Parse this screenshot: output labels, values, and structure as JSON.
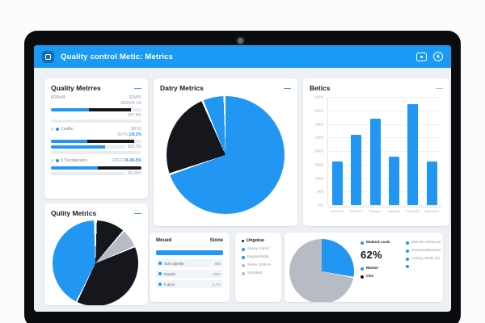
{
  "palette": {
    "blue": "#2196f3",
    "header_blue": "#1b9af5",
    "black": "#15171c",
    "gray": "#b7bcc4",
    "light": "#e8ecf2"
  },
  "header": {
    "title": "Quality control Metic: Metrics",
    "badge_glyph": "6"
  },
  "cards": {
    "quality_metres": {
      "title": "Quality Metrres",
      "collapse": "—",
      "blocks": [
        {
          "label": "FDOc4L",
          "value_top": "$2M05",
          "value_sub": "SE5426 1/6",
          "value_right": "297.8%",
          "bar": [
            [
              "blue",
              42
            ],
            [
              "black",
              46
            ],
            [
              "light",
              12
            ]
          ]
        },
        {
          "label": "Csafbo",
          "value_top": "$8.55",
          "value_pre": "907% ",
          "value_accent": "1/8.2%",
          "value_right": "$58.3%",
          "bar": [
            [
              "blue",
              40
            ],
            [
              "black",
              52
            ],
            [
              "light",
              8
            ]
          ],
          "bar2": [
            [
              "blue",
              73
            ],
            [
              "light",
              27
            ]
          ]
        },
        {
          "label": "5 Trectatenecs",
          "value_pre": "FDGC",
          "value_accent": "7A-08-5%",
          "value_right": "96.39%",
          "bar": [
            [
              "blue",
              52
            ],
            [
              "black",
              48
            ]
          ]
        }
      ]
    },
    "qulity_metrics": {
      "title": "Qulity Metrics",
      "collapse": "—"
    },
    "daty_metrics": {
      "title": "Datry Metrics",
      "collapse": "—"
    },
    "betics": {
      "title": "Betics",
      "collapse": "—"
    },
    "table": {
      "col1": "Moued",
      "col2": "Slone",
      "rows": [
        {
          "label": "Suk-cdyhele",
          "value": "885"
        },
        {
          "label": "Ihutqrh",
          "value": "89%"
        },
        {
          "label": "F.d5-D",
          "value": "2.7%"
        }
      ]
    },
    "ungolue": {
      "title": "Ungolue",
      "items": [
        {
          "color": "blue",
          "label": "Savey mend"
        },
        {
          "color": "blue",
          "label": "Degcidribdm"
        },
        {
          "color": "gray",
          "label": "Slone 1D9L%"
        },
        {
          "color": "gray",
          "label": "Sotsolint"
        }
      ]
    },
    "share": {
      "big_value": "62%",
      "col1": [
        {
          "color": "blue",
          "label": "Malend coob",
          "bold": true
        }
      ],
      "col1b": [
        {
          "color": "blue",
          "label": "Manse",
          "bold": true
        },
        {
          "color": "black",
          "label": "Che",
          "bold": true
        }
      ],
      "col2": [
        {
          "color": "blue",
          "label": "Weiche chsboow"
        },
        {
          "color": "blue",
          "label": "Souramddecame"
        },
        {
          "color": "blue",
          "label": "Auerig urode (oe"
        },
        {
          "color": "blue",
          "label": ""
        }
      ]
    }
  },
  "chart_data": [
    {
      "id": "daty-pie",
      "type": "pie",
      "title": "Datry Metrics",
      "slices": [
        {
          "label": "main-blue",
          "color": "blue",
          "start": 0,
          "end": 250,
          "pct": 69.4
        },
        {
          "label": "black-wedge",
          "color": "black",
          "start": 252,
          "end": 336,
          "pct": 23.3
        },
        {
          "label": "blue-sliver",
          "color": "blue",
          "start": 338,
          "end": 358,
          "pct": 5.6
        }
      ]
    },
    {
      "id": "betics-bars",
      "type": "bar",
      "title": "Betics",
      "yticks": [
        "120%",
        "100%",
        "1000",
        "1500",
        "5000",
        "5000",
        "2000",
        "900",
        "0%"
      ],
      "categories": [
        "Y0KY2F1",
        "TOROTS",
        "TEfnsym",
        "Tossxxw",
        "T4DOOR",
        "M4bOuE1"
      ],
      "values_pct_of_max": [
        40,
        65,
        80,
        45,
        93,
        40
      ],
      "bar_color": "blue",
      "grid": true,
      "legend": "none"
    },
    {
      "id": "qulity-pie",
      "type": "pie",
      "title": "Qulity Metrics",
      "slices": [
        {
          "label": "black-top",
          "color": "black",
          "start": 2,
          "end": 40,
          "pct": 10.5
        },
        {
          "label": "gray-wedge",
          "color": "gray",
          "start": 42,
          "end": 66,
          "pct": 6.7
        },
        {
          "label": "black-main",
          "color": "black",
          "start": 68,
          "end": 205,
          "pct": 38.0
        },
        {
          "label": "blue-main",
          "color": "blue",
          "start": 207,
          "end": 358,
          "pct": 42.0
        }
      ]
    },
    {
      "id": "share-pie",
      "type": "pie",
      "title": "62%",
      "slices": [
        {
          "label": "blue-wedge",
          "color": "blue",
          "start": 0,
          "end": 100,
          "pct": 27.8
        },
        {
          "label": "gray-main",
          "color": "gray",
          "start": 102,
          "end": 360,
          "pct": 71.7
        }
      ]
    }
  ]
}
